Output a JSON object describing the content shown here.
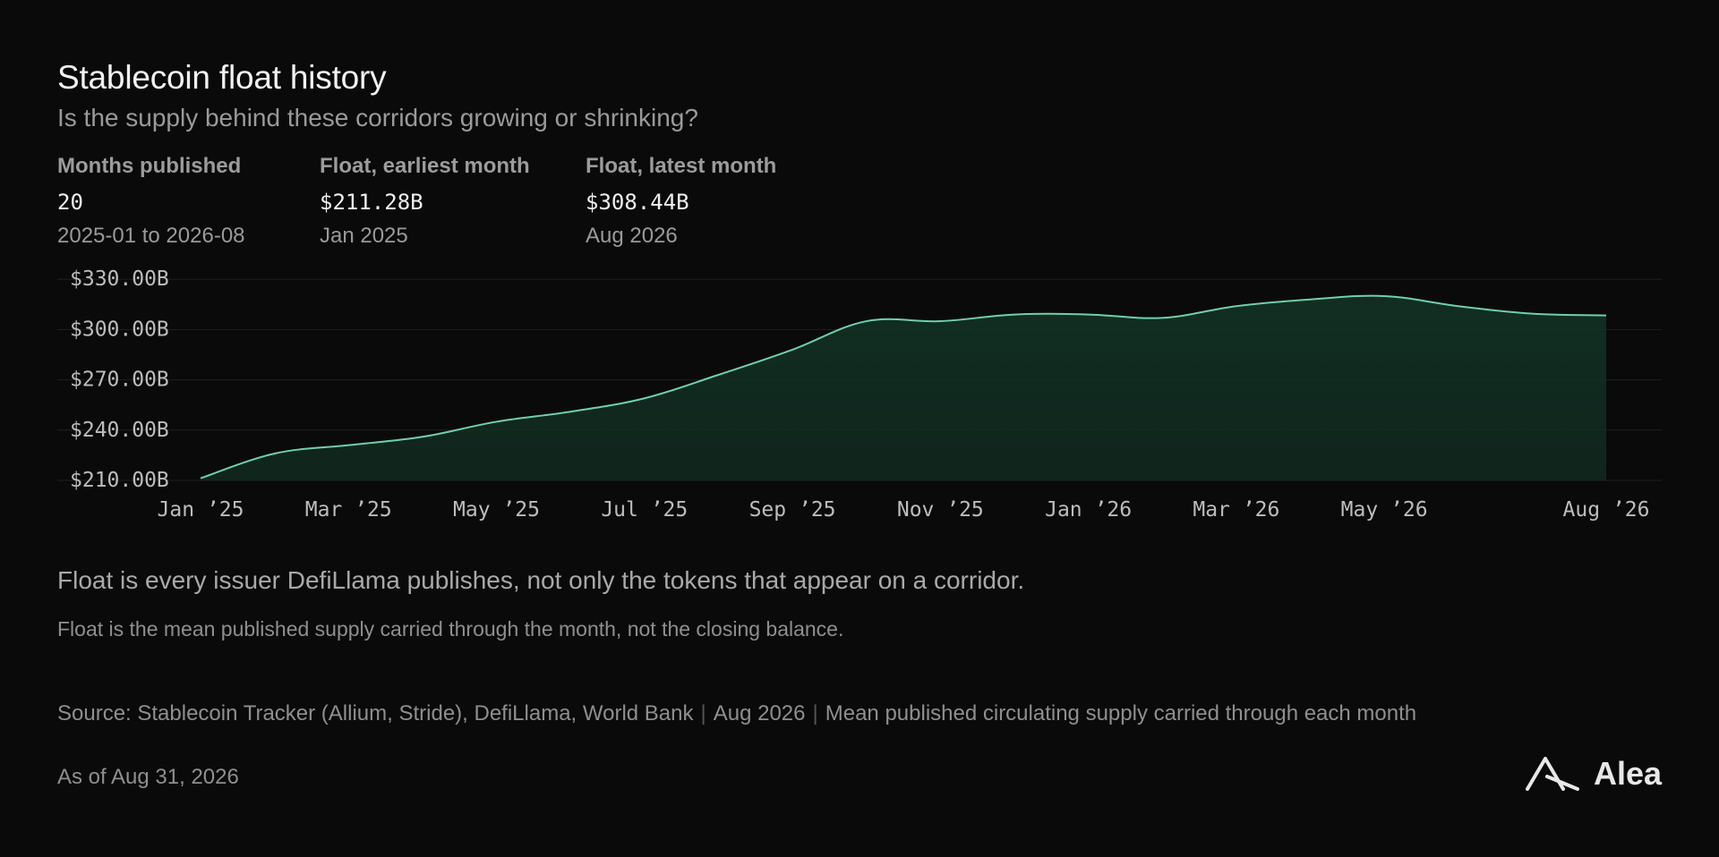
{
  "header": {
    "title": "Stablecoin float history",
    "subtitle": "Is the supply behind these corridors growing or shrinking?"
  },
  "stats": [
    {
      "label": "Months published",
      "value": "20",
      "detail": "2025-01 to 2026-08"
    },
    {
      "label": "Float, earliest month",
      "value": "$211.28B",
      "detail": "Jan 2025"
    },
    {
      "label": "Float, latest month",
      "value": "$308.44B",
      "detail": "Aug 2026"
    }
  ],
  "chart_data": {
    "type": "area",
    "x": [
      "2025-01",
      "2025-02",
      "2025-03",
      "2025-04",
      "2025-05",
      "2025-06",
      "2025-07",
      "2025-08",
      "2025-09",
      "2025-10",
      "2025-11",
      "2025-12",
      "2026-01",
      "2026-02",
      "2026-03",
      "2026-04",
      "2026-05",
      "2026-06",
      "2026-07",
      "2026-08"
    ],
    "series": [
      {
        "values": [
          211.28,
          226,
          231,
          236,
          245,
          251,
          259,
          273,
          288,
          305,
          305,
          309,
          309,
          307,
          314,
          318,
          320,
          314,
          309.5,
          308.44
        ]
      }
    ],
    "x_ticks": [
      {
        "x": "2025-01",
        "label": "Jan ’25"
      },
      {
        "x": "2025-03",
        "label": "Mar ’25"
      },
      {
        "x": "2025-05",
        "label": "May ’25"
      },
      {
        "x": "2025-07",
        "label": "Jul ’25"
      },
      {
        "x": "2025-09",
        "label": "Sep ’25"
      },
      {
        "x": "2025-11",
        "label": "Nov ’25"
      },
      {
        "x": "2026-01",
        "label": "Jan ’26"
      },
      {
        "x": "2026-03",
        "label": "Mar ’26"
      },
      {
        "x": "2026-05",
        "label": "May ’26"
      },
      {
        "x": "2026-08",
        "label": "Aug ’26"
      }
    ],
    "y_ticks": [
      {
        "value": 210,
        "label": "$210.00B"
      },
      {
        "value": 240,
        "label": "$240.00B"
      },
      {
        "value": 270,
        "label": "$270.00B"
      },
      {
        "value": 300,
        "label": "$300.00B"
      },
      {
        "value": 330,
        "label": "$330.00B"
      }
    ],
    "ylim": [
      210,
      336
    ],
    "grid": true,
    "colors": {
      "line": "#6fd0ad",
      "fill": "#123024",
      "grid": "#1f1f1f",
      "tick": "#bdbdbd"
    }
  },
  "notes": {
    "primary": "Float is every issuer DefiLlama publishes, not only the tokens that appear on a corridor.",
    "secondary": "Float is the mean published supply carried through the month, not the closing balance."
  },
  "footer": {
    "source": "Source: Stablecoin Tracker (Allium, Stride), DefiLlama, World Bank",
    "date": "Aug 2026",
    "method": "Mean published circulating supply carried through each month",
    "as_of": "As of Aug 31, 2026",
    "brand": "Alea",
    "brand_icon": "alea-logo-icon"
  }
}
